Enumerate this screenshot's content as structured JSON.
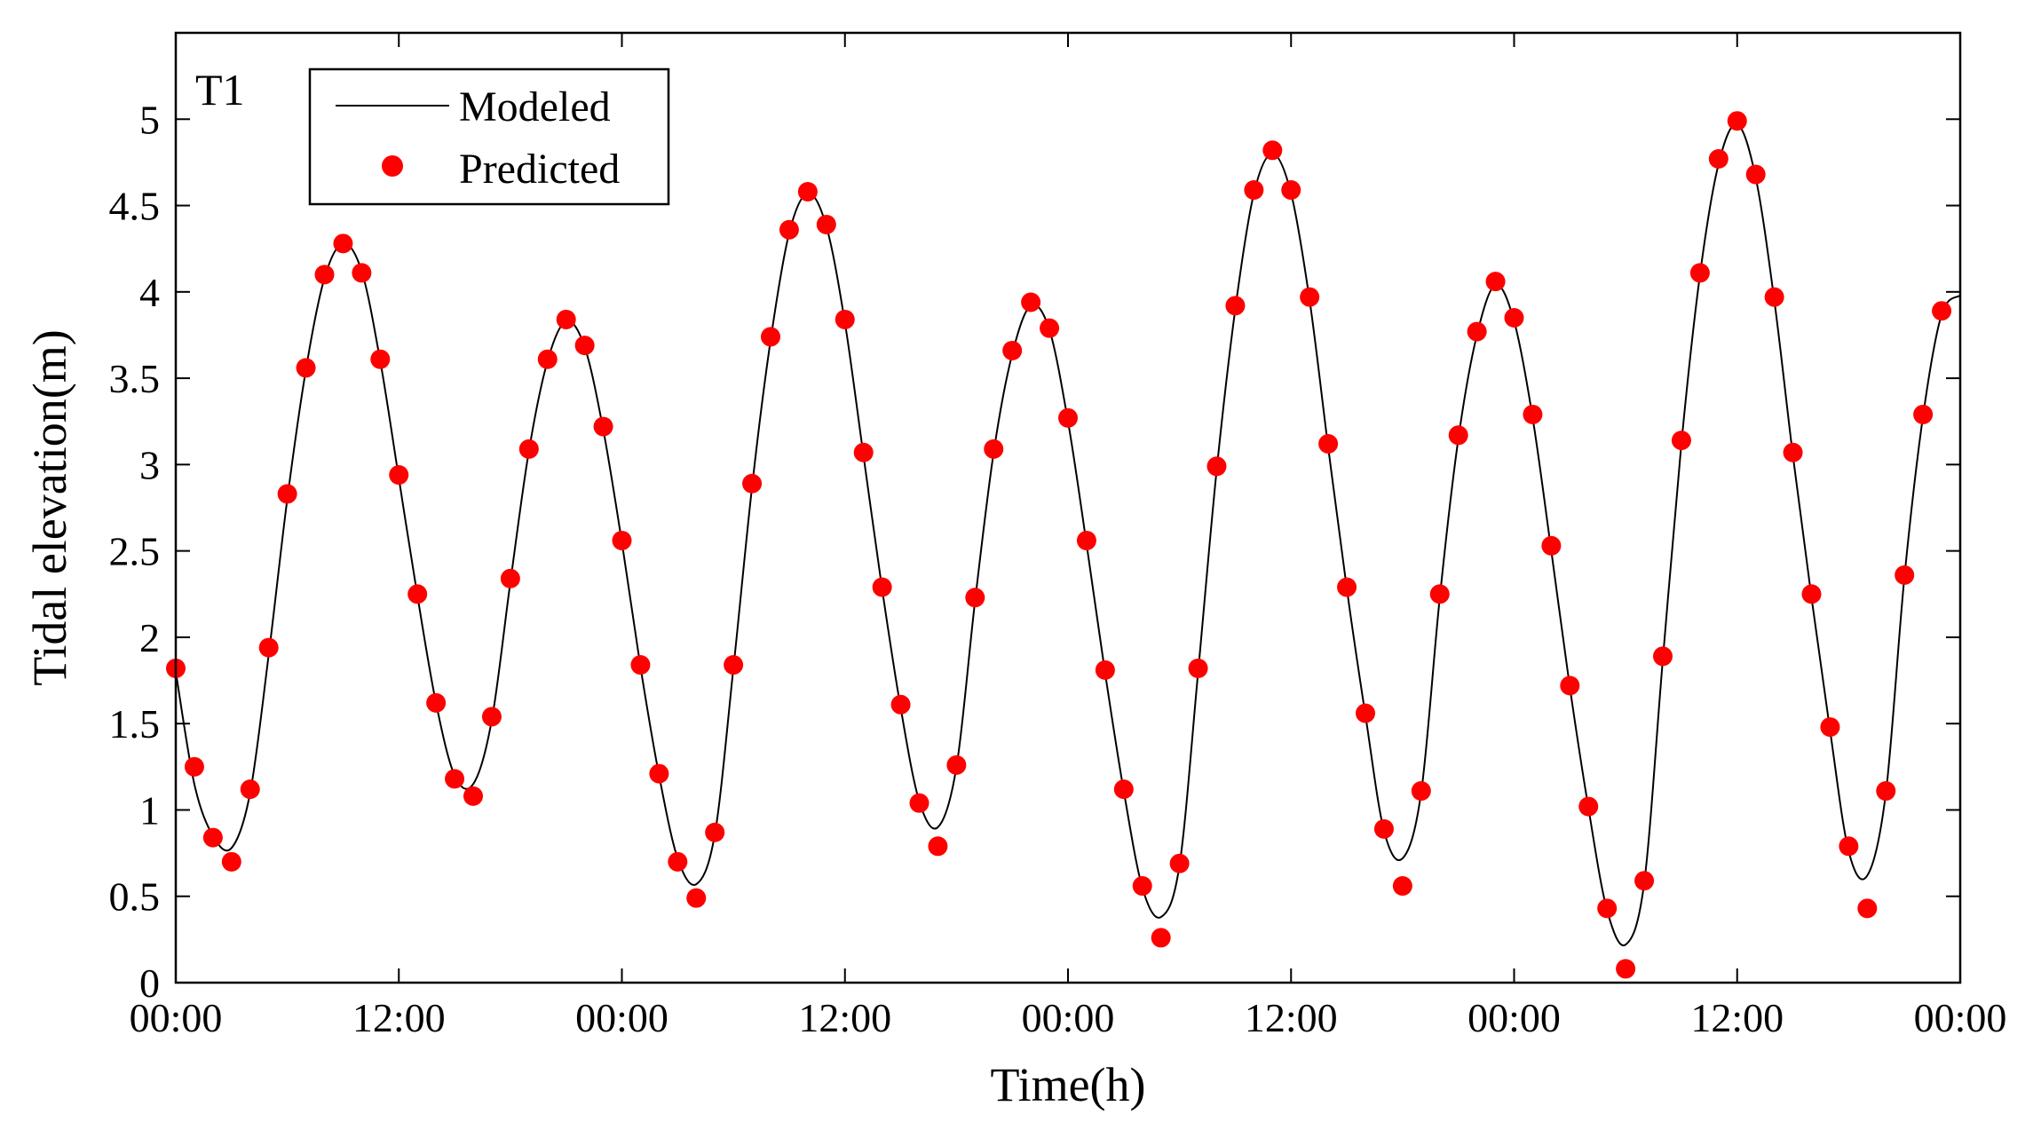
{
  "chart_data": {
    "type": "line",
    "panel_label": "T1",
    "xlabel": "Time(h)",
    "ylabel": "Tidal elevation(m)",
    "x_unit": "hours",
    "xlim": [
      0,
      96
    ],
    "ylim": [
      0,
      5.5
    ],
    "x_ticks": [
      0,
      12,
      24,
      36,
      48,
      60,
      72,
      84,
      96
    ],
    "x_tick_labels": [
      "00:00",
      "12:00",
      "00:00",
      "12:00",
      "00:00",
      "12:00",
      "00:00",
      "12:00",
      "00:00"
    ],
    "y_ticks": [
      0,
      0.5,
      1,
      1.5,
      2,
      2.5,
      3,
      3.5,
      4,
      4.5,
      5
    ],
    "y_tick_labels": [
      "0",
      "0.5",
      "1",
      "1.5",
      "2",
      "2.5",
      "3",
      "3.5",
      "4",
      "4.5",
      "5"
    ],
    "grid": false,
    "legend_position": "top-left",
    "series": [
      {
        "name": "Modeled",
        "style": "line",
        "color": "#000000",
        "x": [
          0,
          1,
          2,
          3,
          4,
          5,
          6,
          7,
          8,
          9,
          10,
          11,
          12,
          13,
          14,
          15,
          16,
          17,
          18,
          19,
          20,
          21,
          22,
          23,
          24,
          25,
          26,
          27,
          28,
          29,
          30,
          31,
          32,
          33,
          34,
          35,
          36,
          37,
          38,
          39,
          40,
          41,
          42,
          43,
          44,
          45,
          46,
          47,
          48,
          49,
          50,
          51,
          52,
          53,
          54,
          55,
          56,
          57,
          58,
          59,
          60,
          61,
          62,
          63,
          64,
          65,
          66,
          67,
          68,
          69,
          70,
          71,
          72,
          73,
          74,
          75,
          76,
          77,
          78,
          79,
          80,
          81,
          82,
          83,
          84,
          85,
          86,
          87,
          88,
          89,
          90,
          91,
          92,
          93,
          94,
          95,
          96
        ],
        "y": [
          1.8,
          1.15,
          0.85,
          0.78,
          1.1,
          1.9,
          2.8,
          3.55,
          4.08,
          4.28,
          4.12,
          3.6,
          2.92,
          2.24,
          1.62,
          1.2,
          1.15,
          1.52,
          2.32,
          3.08,
          3.6,
          3.83,
          3.68,
          3.2,
          2.55,
          1.83,
          1.2,
          0.72,
          0.57,
          0.86,
          1.82,
          2.87,
          3.72,
          4.34,
          4.57,
          4.38,
          3.82,
          3.05,
          2.28,
          1.59,
          1.05,
          0.9,
          1.25,
          2.21,
          3.07,
          3.64,
          3.92,
          3.78,
          3.25,
          2.54,
          1.79,
          1.11,
          0.55,
          0.38,
          0.68,
          1.8,
          2.97,
          3.9,
          4.57,
          4.8,
          4.57,
          3.95,
          3.1,
          2.28,
          1.55,
          0.88,
          0.72,
          1.1,
          2.23,
          3.15,
          3.75,
          4.04,
          3.83,
          3.27,
          2.5,
          1.71,
          1.01,
          0.42,
          0.22,
          0.58,
          1.87,
          3.12,
          4.1,
          4.74,
          4.97,
          4.66,
          3.95,
          3.05,
          2.23,
          1.46,
          0.76,
          0.62,
          1.1,
          2.35,
          3.28,
          3.87,
          3.98
        ]
      },
      {
        "name": "Predicted",
        "style": "markers",
        "color": "#ff0000",
        "x": [
          0,
          1,
          2,
          3,
          4,
          5,
          6,
          7,
          8,
          9,
          10,
          11,
          12,
          13,
          14,
          15,
          16,
          17,
          18,
          19,
          20,
          21,
          22,
          23,
          24,
          25,
          26,
          27,
          28,
          29,
          30,
          31,
          32,
          33,
          34,
          35,
          36,
          37,
          38,
          39,
          40,
          41,
          42,
          43,
          44,
          45,
          46,
          47,
          48,
          49,
          50,
          51,
          52,
          53,
          54,
          55,
          56,
          57,
          58,
          59,
          60,
          61,
          62,
          63,
          64,
          65,
          66,
          67,
          68,
          69,
          70,
          71,
          72,
          73,
          74,
          75,
          76,
          77,
          78,
          79,
          80,
          81,
          82,
          83,
          84,
          85,
          86,
          87,
          88,
          89,
          90,
          91,
          92,
          93,
          94,
          95
        ],
        "y": [
          1.82,
          1.25,
          0.84,
          0.7,
          1.12,
          1.94,
          2.83,
          3.56,
          4.1,
          4.28,
          4.11,
          3.61,
          2.94,
          2.25,
          1.62,
          1.18,
          1.08,
          1.54,
          2.34,
          3.09,
          3.61,
          3.84,
          3.69,
          3.22,
          2.56,
          1.84,
          1.21,
          0.7,
          0.49,
          0.87,
          1.84,
          2.89,
          3.74,
          4.36,
          4.58,
          4.39,
          3.84,
          3.07,
          2.29,
          1.61,
          1.04,
          0.79,
          1.26,
          2.23,
          3.09,
          3.66,
          3.94,
          3.79,
          3.27,
          2.56,
          1.81,
          1.12,
          0.56,
          0.26,
          0.69,
          1.82,
          2.99,
          3.92,
          4.59,
          4.82,
          4.59,
          3.97,
          3.12,
          2.29,
          1.56,
          0.89,
          0.56,
          1.11,
          2.25,
          3.17,
          3.77,
          4.06,
          3.85,
          3.29,
          2.53,
          1.72,
          1.02,
          0.43,
          0.08,
          0.59,
          1.89,
          3.14,
          4.11,
          4.77,
          4.99,
          4.68,
          3.97,
          3.07,
          2.25,
          1.48,
          0.79,
          0.43,
          1.11,
          2.36,
          3.29,
          3.89
        ]
      }
    ]
  }
}
